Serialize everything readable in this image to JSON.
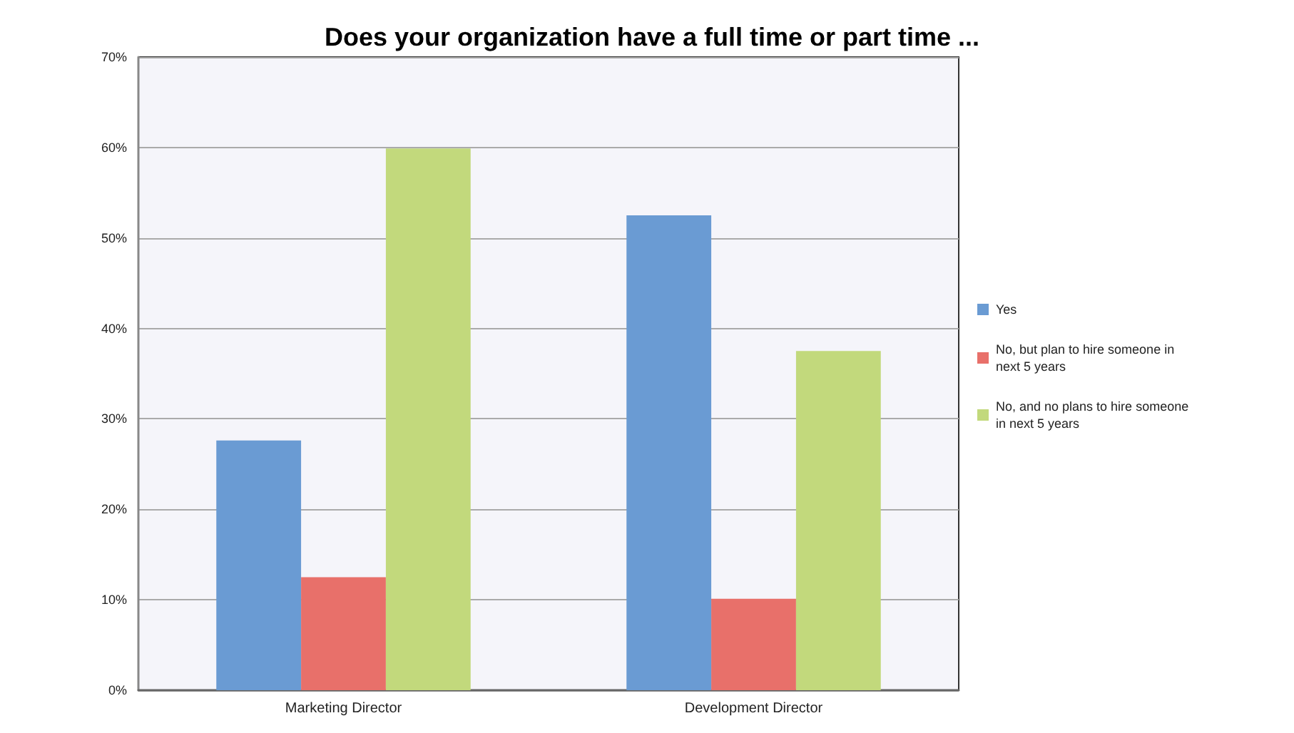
{
  "chart_data": {
    "type": "bar",
    "title": "Does your organization have a full time or part time ...",
    "categories": [
      "Marketing Director",
      "Development Director"
    ],
    "series": [
      {
        "name": "Yes",
        "color": "#6a9bd3",
        "values": [
          27.6,
          52.5
        ]
      },
      {
        "name": "No, but plan to hire someone in\nnext 5 years",
        "color": "#e8706a",
        "values": [
          12.5,
          10.1
        ]
      },
      {
        "name": "No, and no plans to hire someone\nin next 5 years",
        "color": "#c2d97c",
        "values": [
          59.9,
          37.5
        ]
      }
    ],
    "ylim": [
      0,
      70
    ],
    "yticks": [
      {
        "value": 0,
        "label": "0%"
      },
      {
        "value": 10,
        "label": "10%"
      },
      {
        "value": 20,
        "label": "20%"
      },
      {
        "value": 30,
        "label": "30%"
      },
      {
        "value": 40,
        "label": "40%"
      },
      {
        "value": 50,
        "label": "50%"
      },
      {
        "value": 60,
        "label": "60%"
      },
      {
        "value": 70,
        "label": "70%"
      }
    ],
    "grid": "y",
    "legend": "right"
  }
}
